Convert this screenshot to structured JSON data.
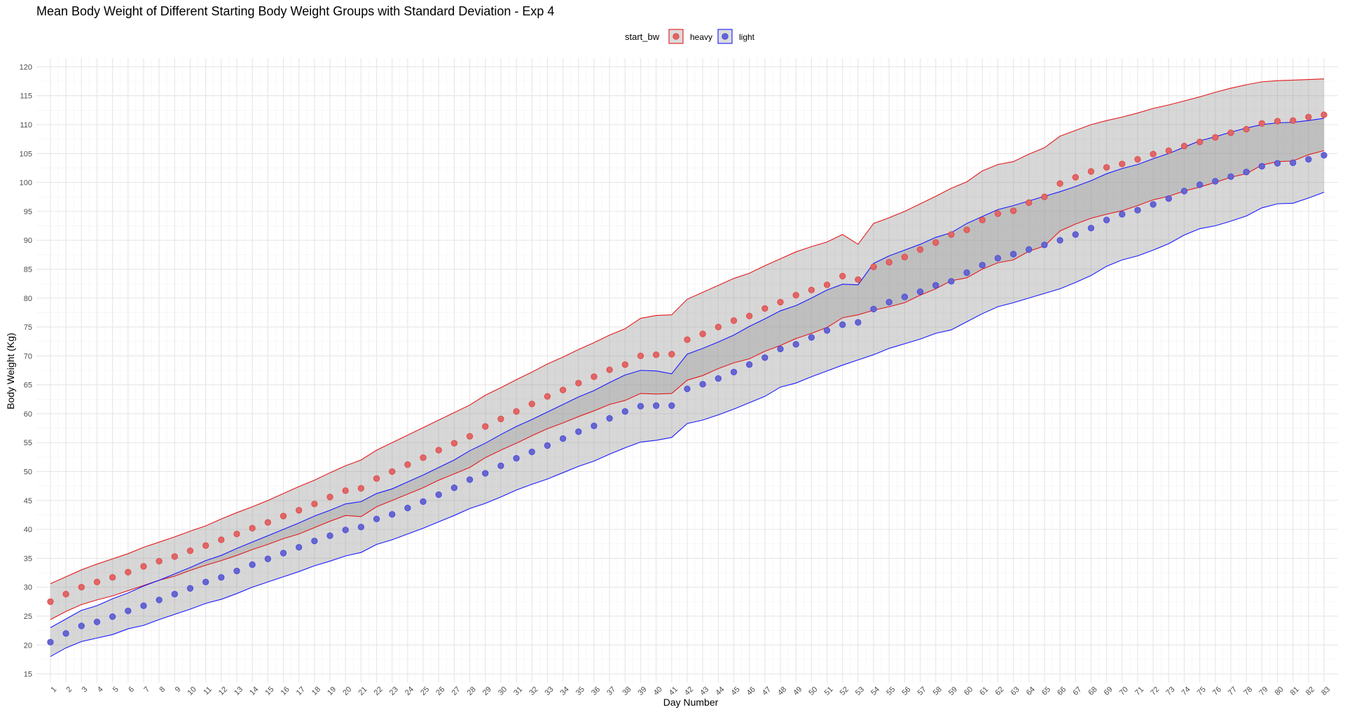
{
  "chart_data": {
    "type": "scatter",
    "title": "Mean Body Weight of Different Starting Body Weight Groups with Standard Deviation - Exp 4",
    "xlabel": "Day Number",
    "ylabel": "Body Weight (Kg)",
    "ylim": [
      13.5,
      121.5
    ],
    "yticks": [
      15,
      20,
      25,
      30,
      35,
      40,
      45,
      50,
      55,
      60,
      65,
      70,
      75,
      80,
      85,
      90,
      95,
      100,
      105,
      110,
      115,
      120
    ],
    "grid": true,
    "legend": {
      "title": "start_bw",
      "placement": "top",
      "entries": [
        "heavy",
        "light"
      ]
    },
    "x": [
      1,
      2,
      3,
      4,
      5,
      6,
      7,
      8,
      9,
      10,
      11,
      12,
      13,
      14,
      15,
      16,
      17,
      18,
      19,
      20,
      21,
      22,
      23,
      24,
      25,
      26,
      27,
      28,
      29,
      30,
      31,
      32,
      33,
      34,
      35,
      36,
      37,
      38,
      39,
      40,
      41,
      42,
      43,
      44,
      45,
      46,
      47,
      48,
      49,
      50,
      51,
      52,
      53,
      54,
      55,
      56,
      57,
      58,
      59,
      60,
      61,
      62,
      63,
      64,
      65,
      66,
      67,
      68,
      69,
      70,
      71,
      72,
      73,
      74,
      75,
      76,
      77,
      78,
      79,
      80,
      81,
      82,
      83
    ],
    "series": [
      {
        "name": "heavy",
        "color": "#e41a1c",
        "fill_point": "#e06666",
        "mean": [
          27.5,
          28.8,
          30.0,
          30.9,
          31.7,
          32.6,
          33.6,
          34.5,
          35.3,
          36.3,
          37.2,
          38.2,
          39.2,
          40.2,
          41.2,
          42.3,
          43.3,
          44.4,
          45.6,
          46.7,
          47.1,
          48.8,
          50.0,
          51.2,
          52.4,
          53.7,
          54.9,
          56.1,
          57.8,
          59.1,
          60.4,
          61.7,
          63.0,
          64.1,
          65.3,
          66.4,
          67.6,
          68.5,
          70.0,
          70.2,
          70.3,
          72.8,
          73.8,
          75.0,
          76.1,
          76.9,
          78.2,
          79.3,
          80.5,
          81.4,
          82.3,
          83.8,
          83.2,
          85.4,
          86.2,
          87.1,
          88.4,
          89.6,
          91.0,
          91.8,
          93.5,
          94.6,
          95.1,
          96.5,
          97.5,
          99.8,
          100.9,
          101.9,
          102.6,
          103.2,
          104.0,
          104.9,
          105.5,
          106.3,
          107.0,
          107.8,
          108.6,
          109.2,
          110.2,
          110.6,
          110.7,
          111.3,
          111.7
        ],
        "upper": [
          30.6,
          31.8,
          33.0,
          34.0,
          34.9,
          35.8,
          36.9,
          37.8,
          38.7,
          39.7,
          40.6,
          41.8,
          42.9,
          43.9,
          45.0,
          46.2,
          47.4,
          48.5,
          49.8,
          51.0,
          52.0,
          53.7,
          55.0,
          56.3,
          57.6,
          58.9,
          60.2,
          61.5,
          63.2,
          64.5,
          65.9,
          67.2,
          68.6,
          69.8,
          71.1,
          72.3,
          73.6,
          74.7,
          76.5,
          77.0,
          77.1,
          79.8,
          81.0,
          82.2,
          83.4,
          84.3,
          85.6,
          86.8,
          88.0,
          88.9,
          89.7,
          91.0,
          89.3,
          92.9,
          93.9,
          95.0,
          96.3,
          97.6,
          99.0,
          100.1,
          102.0,
          103.1,
          103.6,
          104.9,
          106.0,
          108.0,
          109.0,
          110.0,
          110.7,
          111.3,
          112.0,
          112.8,
          113.4,
          114.1,
          114.8,
          115.6,
          116.3,
          116.9,
          117.4,
          117.6,
          117.7,
          117.8,
          117.9
        ],
        "lower": [
          24.4,
          25.8,
          27.0,
          27.8,
          28.5,
          29.4,
          30.3,
          31.2,
          31.9,
          32.9,
          33.8,
          34.6,
          35.5,
          36.5,
          37.4,
          38.4,
          39.2,
          40.3,
          41.4,
          42.4,
          42.2,
          43.9,
          45.0,
          46.1,
          47.2,
          48.5,
          49.6,
          50.7,
          52.4,
          53.7,
          54.9,
          56.2,
          57.4,
          58.4,
          59.5,
          60.5,
          61.6,
          62.3,
          63.5,
          63.4,
          63.5,
          65.8,
          66.6,
          67.8,
          68.8,
          69.5,
          70.8,
          71.8,
          73.0,
          73.9,
          74.9,
          76.6,
          77.1,
          77.9,
          78.5,
          79.2,
          80.5,
          81.6,
          83.0,
          83.5,
          85.0,
          86.1,
          86.6,
          88.1,
          89.0,
          91.6,
          92.8,
          93.8,
          94.5,
          95.1,
          96.0,
          97.0,
          97.6,
          98.5,
          99.2,
          100.0,
          100.9,
          101.5,
          103.0,
          103.6,
          103.7,
          104.8,
          105.5
        ]
      },
      {
        "name": "light",
        "color": "#1a1aff",
        "fill_point": "#6666cc",
        "mean": [
          20.5,
          22.0,
          23.3,
          24.0,
          24.9,
          25.9,
          26.8,
          27.8,
          28.8,
          29.8,
          30.9,
          31.7,
          32.8,
          33.9,
          34.9,
          35.9,
          36.9,
          38.0,
          38.9,
          39.9,
          40.4,
          41.8,
          42.6,
          43.7,
          44.8,
          46.0,
          47.2,
          48.6,
          49.7,
          51.0,
          52.3,
          53.4,
          54.5,
          55.7,
          56.9,
          57.9,
          59.2,
          60.4,
          61.3,
          61.4,
          61.4,
          64.3,
          65.1,
          66.1,
          67.2,
          68.5,
          69.7,
          71.2,
          72.0,
          73.2,
          74.4,
          75.4,
          75.8,
          78.1,
          79.3,
          80.2,
          81.1,
          82.2,
          82.9,
          84.4,
          85.7,
          86.9,
          87.6,
          88.4,
          89.2,
          90.0,
          91.0,
          92.1,
          93.5,
          94.5,
          95.2,
          96.2,
          97.2,
          98.5,
          99.6,
          100.2,
          101.0,
          101.8,
          102.8,
          103.3,
          103.4,
          104.0,
          104.7
        ],
        "upper": [
          23.0,
          24.5,
          26.0,
          26.8,
          28.0,
          29.0,
          30.2,
          31.2,
          32.3,
          33.4,
          34.6,
          35.5,
          36.7,
          37.8,
          38.9,
          40.0,
          41.1,
          42.3,
          43.3,
          44.4,
          44.8,
          46.2,
          47.0,
          48.2,
          49.4,
          50.7,
          52.0,
          53.6,
          54.9,
          56.4,
          57.8,
          59.0,
          60.3,
          61.6,
          62.9,
          64.0,
          65.4,
          66.7,
          67.5,
          67.4,
          66.9,
          70.3,
          71.3,
          72.4,
          73.6,
          75.1,
          76.4,
          77.8,
          78.7,
          80.0,
          81.4,
          82.4,
          82.3,
          86.0,
          87.3,
          88.3,
          89.3,
          90.5,
          91.3,
          92.9,
          94.1,
          95.3,
          96.0,
          96.8,
          97.6,
          98.4,
          99.3,
          100.3,
          101.5,
          102.4,
          103.1,
          104.1,
          105.0,
          106.1,
          107.2,
          107.9,
          108.7,
          109.4,
          110.0,
          110.3,
          110.4,
          110.7,
          111.1
        ],
        "lower": [
          18.0,
          19.5,
          20.6,
          21.2,
          21.8,
          22.8,
          23.4,
          24.4,
          25.3,
          26.2,
          27.2,
          27.9,
          28.9,
          30.0,
          30.9,
          31.8,
          32.7,
          33.7,
          34.5,
          35.4,
          36.0,
          37.4,
          38.2,
          39.2,
          40.2,
          41.3,
          42.4,
          43.6,
          44.5,
          45.6,
          46.8,
          47.8,
          48.7,
          49.8,
          50.9,
          51.8,
          53.0,
          54.1,
          55.1,
          55.4,
          55.9,
          58.3,
          58.9,
          59.8,
          60.8,
          61.9,
          63.0,
          64.6,
          65.3,
          66.4,
          67.4,
          68.4,
          69.3,
          70.2,
          71.3,
          72.1,
          72.9,
          73.9,
          74.5,
          75.9,
          77.3,
          78.5,
          79.2,
          80.0,
          80.8,
          81.6,
          82.7,
          83.9,
          85.5,
          86.6,
          87.3,
          88.3,
          89.4,
          90.9,
          92.0,
          92.5,
          93.3,
          94.2,
          95.6,
          96.3,
          96.4,
          97.3,
          98.3
        ]
      }
    ]
  }
}
